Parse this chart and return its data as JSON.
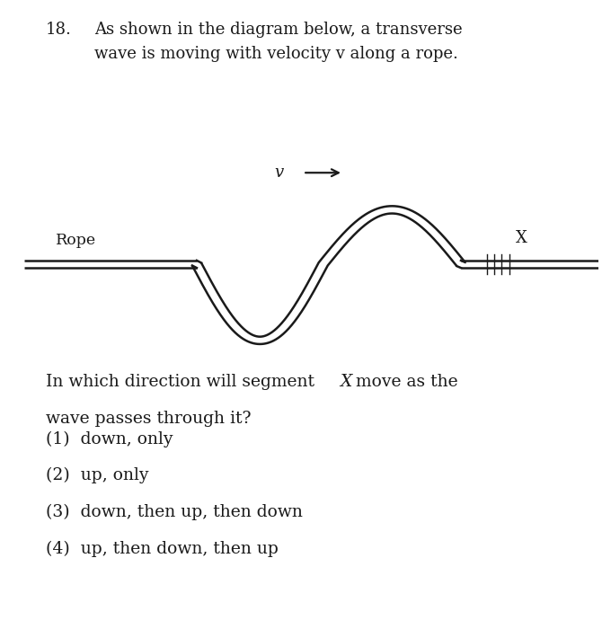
{
  "title_number": "18.",
  "title_text": "As shown in the diagram below, a transverse\nwave is moving with velocity v along a rope.",
  "question_text": "In which direction will segment       move as the\nwave passes through it?",
  "x_in_question": "X",
  "choices": [
    "(1)  down, only",
    "(2)  up, only",
    "(3)  down, then up, then down",
    "(4)  up, then down, then up"
  ],
  "rope_label": "Rope",
  "velocity_label": "v",
  "x_label": "X",
  "bg_color": "#ffffff",
  "line_color": "#1a1a1a",
  "title_fontsize": 13.0,
  "body_fontsize": 13.5,
  "choice_fontsize": 13.5
}
